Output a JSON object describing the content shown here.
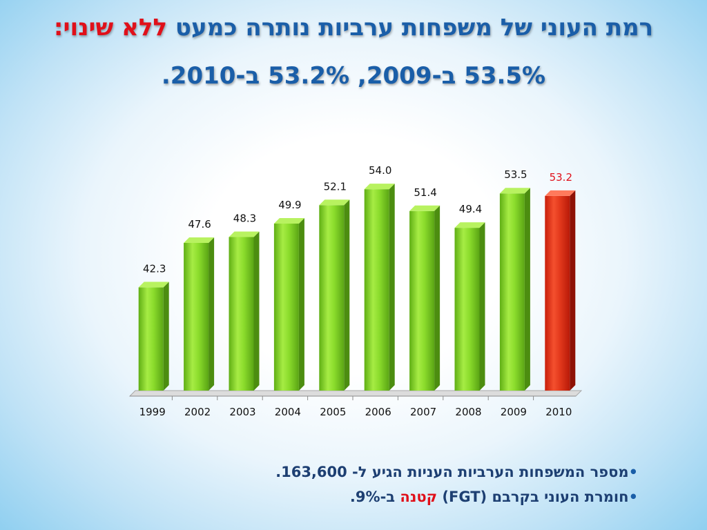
{
  "title": {
    "line1_prefix": "רמת העוני של משפחות ערביות נותרה כמעט ",
    "line1_highlight": "ללא שינוי",
    "line1_suffix": ":",
    "line2": "53.5% ב-2009, 53.2% ב-2010."
  },
  "chart_data": {
    "type": "bar",
    "categories": [
      "1999",
      "2002",
      "2003",
      "2004",
      "2005",
      "2006",
      "2007",
      "2008",
      "2009",
      "2010"
    ],
    "values": [
      42.3,
      47.6,
      48.3,
      49.9,
      52.1,
      54.0,
      51.4,
      49.4,
      53.5,
      53.2
    ],
    "value_labels": [
      "42.3",
      "47.6",
      "48.3",
      "49.9",
      "52.1",
      "54.0",
      "51.4",
      "49.4",
      "53.5",
      "53.2"
    ],
    "highlight_index": 9,
    "ylim": [
      30,
      55
    ],
    "colors": {
      "bar": "#84d62a",
      "highlight": "#e8301a",
      "label": "#111111",
      "highlight_label": "#e0101a"
    },
    "title": "",
    "xlabel": "",
    "ylabel": "",
    "grid": false,
    "legend": "none"
  },
  "bullets": [
    {
      "marker": "•",
      "text": "מספר המשפחות הערביות העניות הגיע ל- 163,600."
    },
    {
      "marker": "•",
      "text_before": "חומרת העוני בקרבם (FGT) ",
      "highlight": "קטנה",
      "text_after": " ב-9%."
    }
  ]
}
